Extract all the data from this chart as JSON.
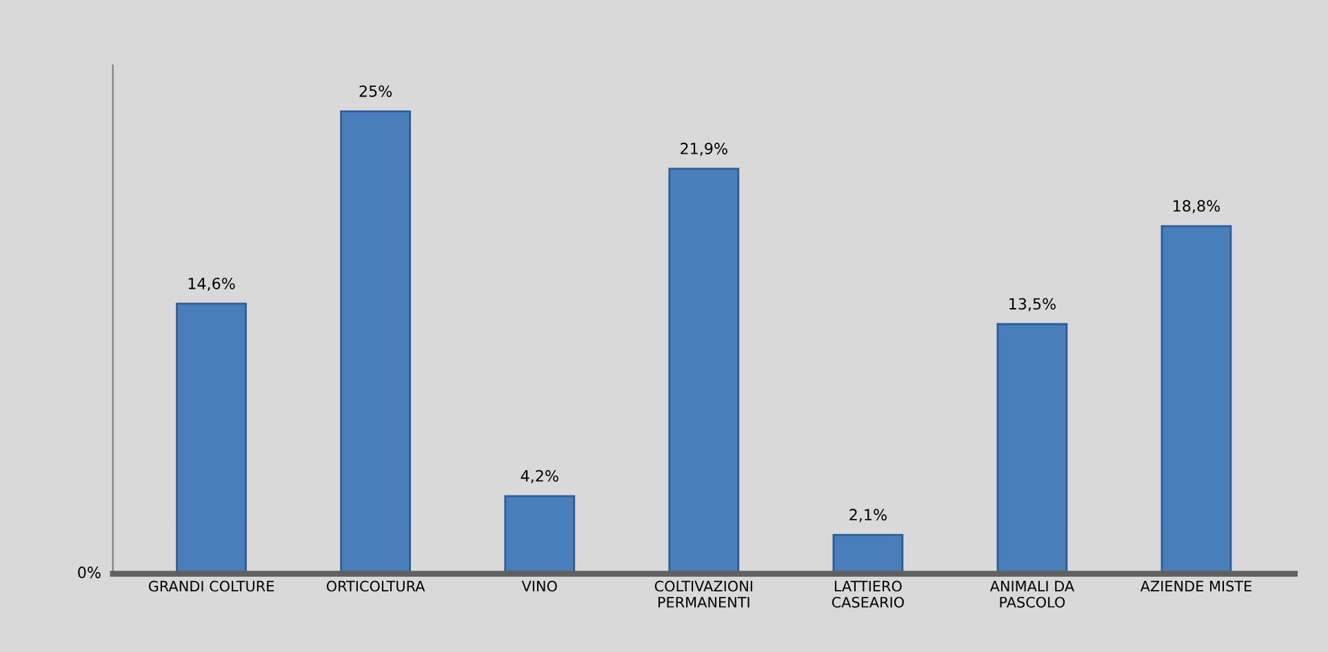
{
  "chart_data": {
    "type": "bar",
    "categories": [
      "GRANDI COLTURE",
      "ORTICOLTURA",
      "VINO",
      "COLTIVAZIONI\nPERMANENTI",
      "LATTIERO\nCASEARIO",
      "ANIMALI DA\nPASCOLO",
      "AZIENDE MISTE"
    ],
    "values": [
      14.6,
      25,
      4.2,
      21.9,
      2.1,
      13.5,
      18.8
    ],
    "value_labels": [
      "14,6%",
      "25%",
      "4,2%",
      "21,9%",
      "2,1%",
      "13,5%",
      "18,8%"
    ],
    "color": "#4a7ebb",
    "annotations": [
      "0%"
    ],
    "grid": false
  }
}
